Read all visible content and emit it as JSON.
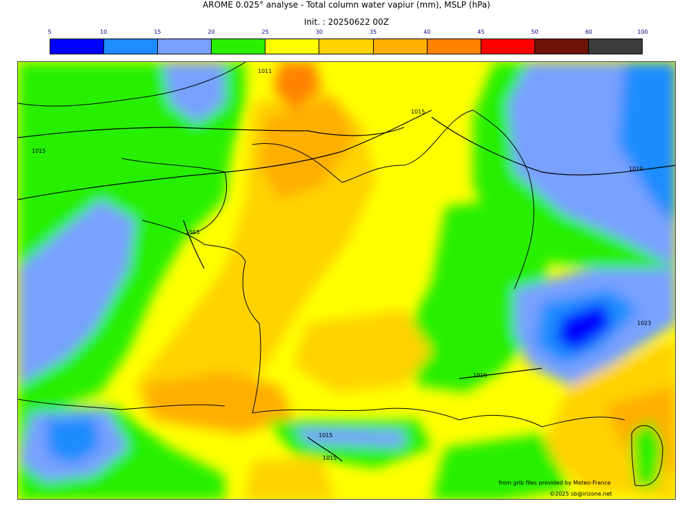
{
  "header": {
    "title": "AROME 0.025° analyse - Total column water vapiur (mm), MSLP (hPa)",
    "subtitle": "Init. : 20250622 00Z"
  },
  "colorbar": {
    "ticks": [
      "5",
      "10",
      "15",
      "20",
      "25",
      "30",
      "35",
      "40",
      "45",
      "50",
      "60",
      "100"
    ],
    "colors": [
      "#0000ff",
      "#1e8cff",
      "#78a0ff",
      "#28f000",
      "#ffff00",
      "#ffd200",
      "#ffaf00",
      "#ff8200",
      "#ff0000",
      "#6e1406",
      "#3c3c3c"
    ]
  },
  "map": {
    "isobar_labels": [
      "1011",
      "1015",
      "1015",
      "1013",
      "1019",
      "1019",
      "1023",
      "1015",
      "1015"
    ]
  },
  "credits": {
    "source": "from grib files provided by Meteo-France",
    "copyright": "©2025 sb@irizone.net"
  }
}
